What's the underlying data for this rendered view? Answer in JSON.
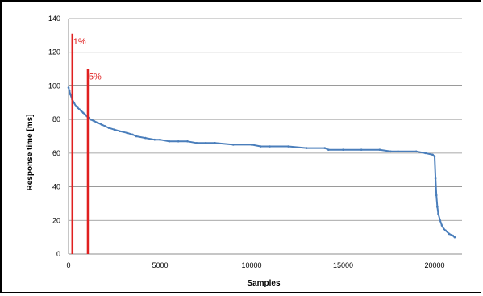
{
  "chart_data": {
    "type": "line",
    "title": "",
    "xlabel": "Samples",
    "ylabel": "Response time [ms]",
    "xlim": [
      0,
      21500
    ],
    "ylim": [
      0,
      140
    ],
    "x_ticks": [
      0,
      5000,
      10000,
      15000,
      20000
    ],
    "x_tick_labels": [
      "0",
      "5000",
      "10000",
      "15000",
      "20000"
    ],
    "y_ticks": [
      0,
      20,
      40,
      60,
      80,
      100,
      120,
      140
    ],
    "y_tick_labels": [
      "0",
      "20",
      "40",
      "60",
      "80",
      "100",
      "120",
      "140"
    ],
    "grid": "horizontal",
    "legend": "none",
    "series": [
      {
        "color": "#4a7ebb",
        "x": [
          0,
          50,
          100,
          200,
          300,
          400,
          500,
          600,
          700,
          800,
          900,
          1000,
          1100,
          1200,
          1400,
          1600,
          1800,
          2000,
          2200,
          2500,
          2800,
          3200,
          3500,
          3700,
          4200,
          4700,
          5000,
          5500,
          6000,
          6500,
          7000,
          7500,
          8000,
          9000,
          10000,
          10500,
          11000,
          12000,
          13000,
          14000,
          14200,
          15000,
          16000,
          17000,
          17600,
          18000,
          19000,
          19500,
          19900,
          20000,
          20050,
          20100,
          20150,
          20200,
          20300,
          20400,
          20500,
          20600,
          20800,
          21000,
          21100
        ],
        "y": [
          99,
          97,
          95,
          92,
          90,
          88,
          87,
          86,
          85,
          84,
          83,
          82,
          81,
          80,
          79,
          78,
          77,
          76,
          75,
          74,
          73,
          72,
          71,
          70,
          69,
          68,
          68,
          67,
          67,
          67,
          66,
          66,
          66,
          65,
          65,
          64,
          64,
          64,
          63,
          63,
          62,
          62,
          62,
          62,
          61,
          61,
          61,
          60,
          59,
          58,
          45,
          35,
          28,
          24,
          20,
          17,
          15,
          14,
          12,
          11,
          10
        ]
      }
    ],
    "markers": [
      {
        "x": 211,
        "y_top": 131,
        "color": "#e02020",
        "label": "1%"
      },
      {
        "x": 1055,
        "y_top": 110,
        "color": "#e02020",
        "label": "5%"
      }
    ]
  }
}
